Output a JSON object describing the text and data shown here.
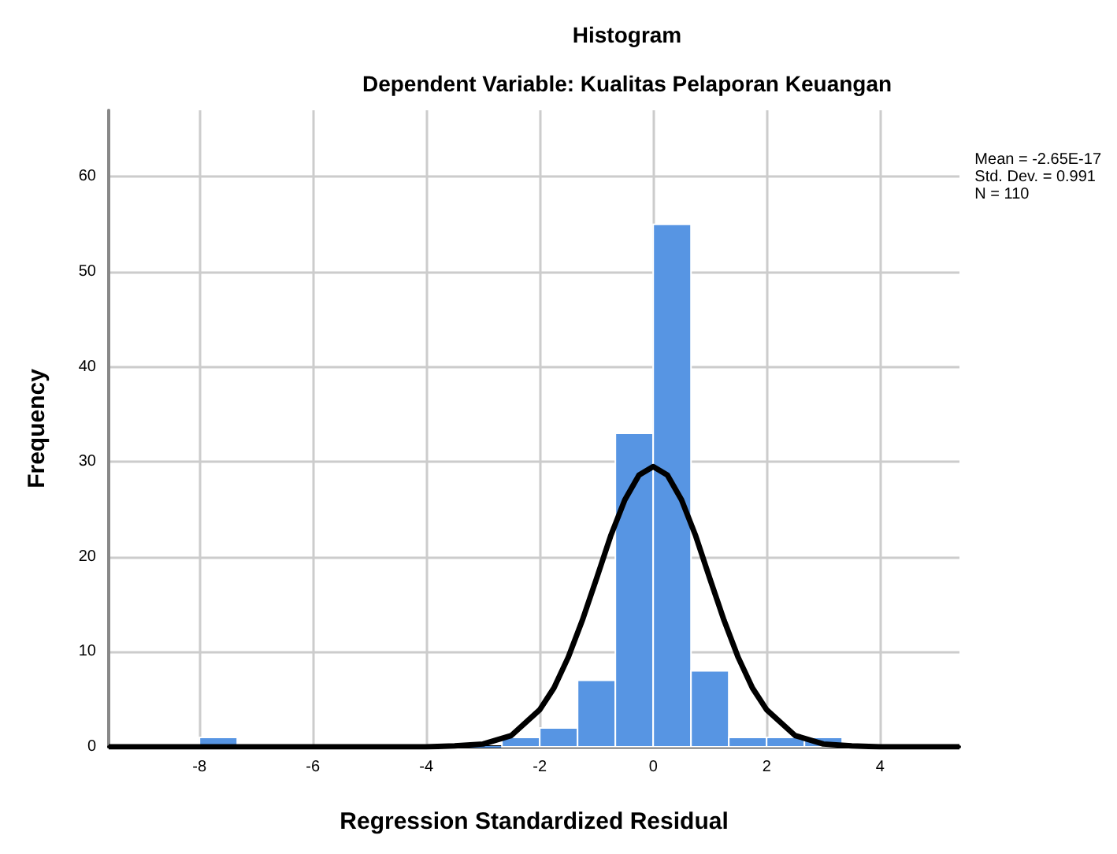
{
  "chart_data": {
    "type": "histogram",
    "title": "Histogram",
    "subtitle": "Dependent Variable: Kualitas Pelaporan Keuangan",
    "xlabel": "Regression Standardized Residual",
    "ylabel": "Frequency",
    "bins": [
      -8,
      -7.333,
      -6.667,
      -6,
      -5.333,
      -4.667,
      -4,
      -3.333,
      -2.667,
      -2,
      -1.333,
      -0.667,
      0,
      0.667,
      1.333,
      2,
      2.667,
      3.333
    ],
    "values": [
      1,
      0,
      0,
      0,
      0,
      0,
      0,
      0,
      1,
      2,
      7,
      33,
      55,
      8,
      1,
      1,
      1
    ],
    "color": "#5795e3",
    "series": [
      {
        "type": "line",
        "color": "#000000",
        "x": [
          -9.6,
          -4,
          -3.5,
          -3,
          -2.5,
          -2,
          -1.75,
          -1.5,
          -1.25,
          -1,
          -0.75,
          -0.5,
          -0.25,
          0,
          0.25,
          0.5,
          0.75,
          1,
          1.25,
          1.5,
          1.75,
          2,
          2.5,
          3,
          3.5,
          4,
          5.4
        ],
        "values": [
          0,
          0,
          0.1,
          0.3,
          1.2,
          3.9,
          6.2,
          9.4,
          13.3,
          17.7,
          22.2,
          26,
          28.6,
          29.5,
          28.6,
          26,
          22.2,
          17.7,
          13.3,
          9.4,
          6.2,
          3.9,
          1.2,
          0.3,
          0.1,
          0,
          0
        ]
      }
    ],
    "marker": "none",
    "line_style": "solid",
    "xlim": [
      -9.6,
      5.4
    ],
    "xticks": [
      -8,
      -6,
      -4,
      -2,
      0,
      2,
      4
    ],
    "ylim": [
      0,
      67
    ],
    "yticks": [
      0,
      10,
      20,
      30,
      40,
      50,
      60
    ],
    "grid": true,
    "annotations": [
      "Mean = -2.65E-17\nStd. Dev. = 0.991\nN = 110"
    ]
  }
}
